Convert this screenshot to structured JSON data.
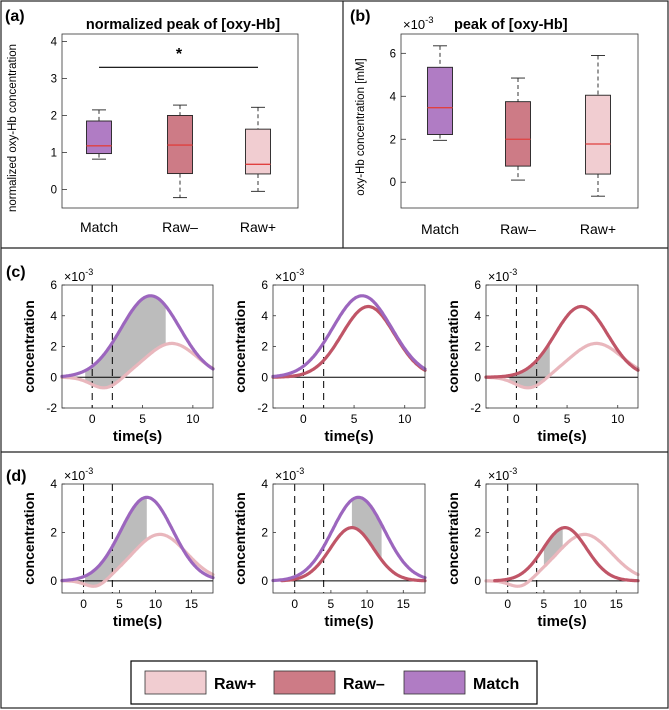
{
  "colors": {
    "match": "#b07cc4",
    "raw_minus": "#cd7b86",
    "raw_plus": "#f1cdd1",
    "median": "#e0403f",
    "shade": "#bcbcbc",
    "match_line": "#9c66be",
    "raw_minus_line": "#c05567",
    "raw_plus_line": "#e9b7bd"
  },
  "legend": {
    "items": [
      {
        "label": "Raw+",
        "color_key": "raw_plus"
      },
      {
        "label": "Raw–",
        "color_key": "raw_minus"
      },
      {
        "label": "Match",
        "color_key": "match"
      }
    ]
  },
  "chart_data": [
    {
      "id": "a",
      "panel_label": "(a)",
      "type": "box",
      "title": "normalized peak of [oxy-Hb]",
      "ylabel": "normalized oxy-Hb concentration",
      "categories": [
        "Match",
        "Raw–",
        "Raw+"
      ],
      "yticks": [
        "0",
        "1",
        "2",
        "3",
        "4"
      ],
      "ylim": [
        -0.5,
        4.2
      ],
      "boxes": [
        {
          "category": "Match",
          "whisker_low": 0.82,
          "q1": 0.97,
          "median": 1.18,
          "q3": 1.85,
          "whisker_high": 2.15,
          "color_key": "match"
        },
        {
          "category": "Raw–",
          "whisker_low": -0.22,
          "q1": 0.43,
          "median": 1.2,
          "q3": 2.0,
          "whisker_high": 2.28,
          "color_key": "raw_minus"
        },
        {
          "category": "Raw+",
          "whisker_low": -0.05,
          "q1": 0.42,
          "median": 0.68,
          "q3": 1.63,
          "whisker_high": 2.22,
          "color_key": "raw_plus"
        }
      ],
      "significance": {
        "from": "Match",
        "to": "Raw+",
        "y": 3.3,
        "label": "*"
      }
    },
    {
      "id": "b",
      "panel_label": "(b)",
      "type": "box",
      "title": "peak of [oxy-Hb]",
      "multiplier_base": "×10",
      "multiplier_exp": "-3",
      "ylabel": "oxy-Hb concentration [mM]",
      "categories": [
        "Match",
        "Raw–",
        "Raw+"
      ],
      "yticks": [
        "0",
        "2",
        "4",
        "6"
      ],
      "ylim": [
        -1.2,
        6.9
      ],
      "boxes": [
        {
          "category": "Match",
          "whisker_low": 1.95,
          "q1": 2.22,
          "median": 3.47,
          "q3": 5.35,
          "whisker_high": 6.35,
          "color_key": "match"
        },
        {
          "category": "Raw–",
          "whisker_low": 0.1,
          "q1": 0.75,
          "median": 2.0,
          "q3": 3.75,
          "whisker_high": 4.85,
          "color_key": "raw_minus"
        },
        {
          "category": "Raw+",
          "whisker_low": -0.65,
          "q1": 0.38,
          "median": 1.78,
          "q3": 4.05,
          "whisker_high": 5.9,
          "color_key": "raw_plus"
        }
      ]
    },
    {
      "id": "c",
      "panel_label": "(c)",
      "type": "line",
      "xlabel": "time(s)",
      "ylabel": "concentration",
      "multiplier_base": "×10",
      "multiplier_exp": "-3",
      "xlim": [
        -3,
        12
      ],
      "ylim": [
        -2,
        6
      ],
      "xticks": [
        "0",
        "5",
        "10"
      ],
      "yticks": [
        "-2",
        "0",
        "2",
        "4",
        "6"
      ],
      "vlines": [
        0,
        2
      ],
      "curves": {
        "match": {
          "start": -3,
          "end": 12,
          "amp": 5.3,
          "center": 5.8,
          "sigma": 2.9,
          "dip_amp": 0,
          "dip_center": 0,
          "dip_sigma": 1
        },
        "raw_minus": {
          "start": -3,
          "end": 12,
          "amp": 4.6,
          "center": 6.4,
          "sigma": 2.6,
          "dip_amp": 0,
          "dip_center": 0,
          "dip_sigma": 1
        },
        "raw_plus": {
          "start": -3,
          "end": 12,
          "amp": 2.2,
          "center": 7.9,
          "sigma": 2.5,
          "dip_amp": 0.75,
          "dip_center": 1.3,
          "dip_sigma": 1.4
        }
      },
      "subplots": [
        {
          "curves": [
            "raw_plus",
            "match"
          ],
          "shade": {
            "top": "match",
            "bottom": "raw_plus",
            "from": -0.7,
            "to": 7.3
          }
        },
        {
          "curves": [
            "raw_minus",
            "match"
          ]
        },
        {
          "curves": [
            "raw_plus",
            "raw_minus"
          ],
          "shade": {
            "top": "raw_minus",
            "bottom": "raw_plus",
            "from": -0.7,
            "to": 3.3
          }
        }
      ]
    },
    {
      "id": "d",
      "panel_label": "(d)",
      "type": "line",
      "xlabel": "time(s)",
      "ylabel": "concentration",
      "multiplier_base": "×10",
      "multiplier_exp": "-3",
      "xlim": [
        -3,
        18
      ],
      "ylim": [
        -0.5,
        4
      ],
      "xticks": [
        "0",
        "5",
        "10",
        "15"
      ],
      "yticks": [
        "0",
        "2",
        "4"
      ],
      "vlines": [
        0,
        4
      ],
      "curves": {
        "match": {
          "start": -3,
          "end": 18,
          "amp": 3.45,
          "center": 8.8,
          "sigma": 3.6,
          "dip_amp": 0,
          "dip_center": 0,
          "dip_sigma": 1
        },
        "raw_minus": {
          "start": -1.8,
          "end": 18,
          "amp": 2.2,
          "center": 7.9,
          "sigma": 3.0,
          "dip_amp": 0,
          "dip_center": 0,
          "dip_sigma": 1
        },
        "raw_plus": {
          "start": -3,
          "end": 18,
          "amp": 1.92,
          "center": 10.6,
          "sigma": 3.7,
          "dip_amp": 0.32,
          "dip_center": 1.8,
          "dip_sigma": 1.5
        }
      },
      "subplots": [
        {
          "curves": [
            "raw_plus",
            "match"
          ],
          "shade": {
            "top": "match",
            "bottom": "raw_plus",
            "from": 0.2,
            "to": 8.8
          }
        },
        {
          "curves": [
            "raw_minus",
            "match"
          ],
          "shade": {
            "top": "match",
            "bottom": "raw_minus",
            "from": 7.9,
            "to": 12.0
          }
        },
        {
          "curves": [
            "raw_plus",
            "raw_minus"
          ],
          "shade": {
            "top": "raw_minus",
            "bottom": "raw_plus",
            "from": 5.0,
            "to": 7.6
          }
        }
      ]
    }
  ]
}
